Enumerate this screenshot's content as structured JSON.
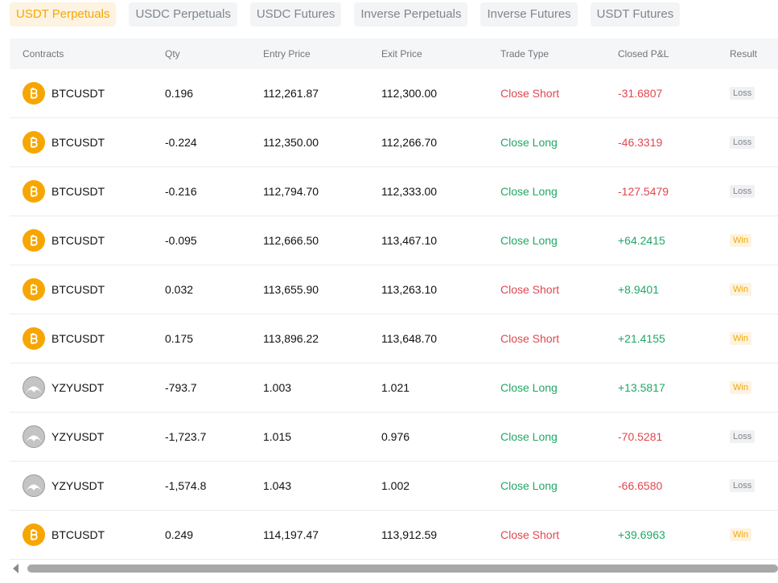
{
  "tabs": [
    "USDT Perpetuals",
    "USDC Perpetuals",
    "USDC Futures",
    "Inverse Perpetuals",
    "Inverse Futures",
    "USDT Futures"
  ],
  "table": {
    "headers": [
      "Contracts",
      "Qty",
      "Entry Price",
      "Exit Price",
      "Trade Type",
      "Closed P&L",
      "Result"
    ],
    "rows": [
      {
        "icon": "btc",
        "contract": "BTCUSDT",
        "qty": "0.196",
        "entry": "112,261.87",
        "exit": "112,300.00",
        "type": "Close Short",
        "type_color": "#e0474f",
        "pnl": "-31.6807",
        "pnl_color": "#e0474f",
        "result": "Loss",
        "result_style": "loss"
      },
      {
        "icon": "btc",
        "contract": "BTCUSDT",
        "qty": "-0.224",
        "entry": "112,350.00",
        "exit": "112,266.70",
        "type": "Close Long",
        "type_color": "#20a865",
        "pnl": "-46.3319",
        "pnl_color": "#e0474f",
        "result": "Loss",
        "result_style": "loss"
      },
      {
        "icon": "btc",
        "contract": "BTCUSDT",
        "qty": "-0.216",
        "entry": "112,794.70",
        "exit": "112,333.00",
        "type": "Close Long",
        "type_color": "#20a865",
        "pnl": "-127.5479",
        "pnl_color": "#e0474f",
        "result": "Loss",
        "result_style": "loss"
      },
      {
        "icon": "btc",
        "contract": "BTCUSDT",
        "qty": "-0.095",
        "entry": "112,666.50",
        "exit": "113,467.10",
        "type": "Close Long",
        "type_color": "#20a865",
        "pnl": "+64.2415",
        "pnl_color": "#20a865",
        "result": "Win",
        "result_style": "win"
      },
      {
        "icon": "btc",
        "contract": "BTCUSDT",
        "qty": "0.032",
        "entry": "113,655.90",
        "exit": "113,263.10",
        "type": "Close Short",
        "type_color": "#e0474f",
        "pnl": "+8.9401",
        "pnl_color": "#20a865",
        "result": "Win",
        "result_style": "win"
      },
      {
        "icon": "btc",
        "contract": "BTCUSDT",
        "qty": "0.175",
        "entry": "113,896.22",
        "exit": "113,648.70",
        "type": "Close Short",
        "type_color": "#e0474f",
        "pnl": "+21.4155",
        "pnl_color": "#20a865",
        "result": "Win",
        "result_style": "win"
      },
      {
        "icon": "yzy",
        "contract": "YZYUSDT",
        "qty": "-793.7",
        "entry": "1.003",
        "exit": "1.021",
        "type": "Close Long",
        "type_color": "#20a865",
        "pnl": "+13.5817",
        "pnl_color": "#20a865",
        "result": "Win",
        "result_style": "win"
      },
      {
        "icon": "yzy",
        "contract": "YZYUSDT",
        "qty": "-1,723.7",
        "entry": "1.015",
        "exit": "0.976",
        "type": "Close Long",
        "type_color": "#20a865",
        "pnl": "-70.5281",
        "pnl_color": "#e0474f",
        "result": "Loss",
        "result_style": "loss"
      },
      {
        "icon": "yzy",
        "contract": "YZYUSDT",
        "qty": "-1,574.8",
        "entry": "1.043",
        "exit": "1.002",
        "type": "Close Long",
        "type_color": "#20a865",
        "pnl": "-66.6580",
        "pnl_color": "#e0474f",
        "result": "Loss",
        "result_style": "loss"
      },
      {
        "icon": "btc",
        "contract": "BTCUSDT",
        "qty": "0.249",
        "entry": "114,197.47",
        "exit": "113,912.59",
        "type": "Close Short",
        "type_color": "#e0474f",
        "pnl": "+39.6963",
        "pnl_color": "#20a865",
        "result": "Win",
        "result_style": "win"
      }
    ]
  }
}
